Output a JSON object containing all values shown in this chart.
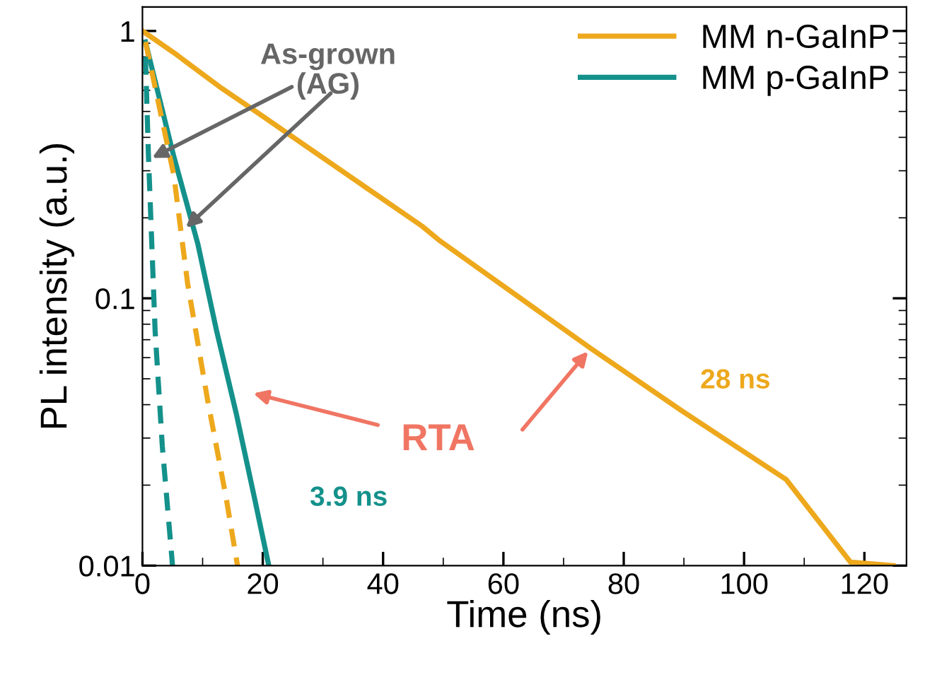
{
  "chart_data": {
    "type": "line",
    "xlabel": "Time (ns)",
    "ylabel": "PL intensity (a.u.)",
    "log": "y",
    "xlim": [
      0,
      127
    ],
    "ylim": [
      0.01,
      1.23
    ],
    "xticks": [
      0,
      20,
      40,
      60,
      80,
      100,
      120
    ],
    "yticks": [
      {
        "value": 0.01,
        "label": "0.01"
      },
      {
        "value": 0.1,
        "label": "0.1"
      },
      {
        "value": 1,
        "label": "1"
      }
    ],
    "grid": false,
    "legend": "top right",
    "series": [
      {
        "name": "MM n-GaInP",
        "color": "#eda81c",
        "line_style": "solid",
        "x": [
          0,
          5.2,
          13.2,
          20,
          28.8,
          46.5,
          49.3,
          74.5,
          89.6,
          107,
          117.7,
          124.8
        ],
        "values": [
          1,
          0.83,
          0.61,
          0.48,
          0.35,
          0.186,
          0.165,
          0.065,
          0.038,
          0.021,
          0.0103,
          0.01
        ]
      },
      {
        "name": "MM p-GaInP",
        "color": "#14918b",
        "line_style": "solid",
        "x": [
          0.5,
          5.2,
          9.2,
          12.3,
          15.6,
          18.6,
          21
        ],
        "values": [
          0.91,
          0.34,
          0.16,
          0.076,
          0.037,
          0.018,
          0.01
        ]
      },
      {
        "color": "#eda81c",
        "line_style": "dashed",
        "x": [
          0.5,
          5.2,
          7.5,
          10.8,
          13.9,
          15.8
        ],
        "values": [
          0.91,
          0.29,
          0.114,
          0.042,
          0.018,
          0.01
        ]
      },
      {
        "color": "#14918b",
        "line_style": "dashed",
        "x": [
          0.5,
          1,
          2.1,
          3.3,
          5
        ],
        "values": [
          0.8,
          0.34,
          0.076,
          0.028,
          0.01
        ]
      }
    ],
    "annotations": [
      {
        "text": "As-grown\n(AG)",
        "x": 1,
        "y": 0.33
      },
      {
        "text": "RTA",
        "x": 74.5,
        "y": 0.065
      },
      "28 ns",
      "3.9 ns"
    ]
  }
}
